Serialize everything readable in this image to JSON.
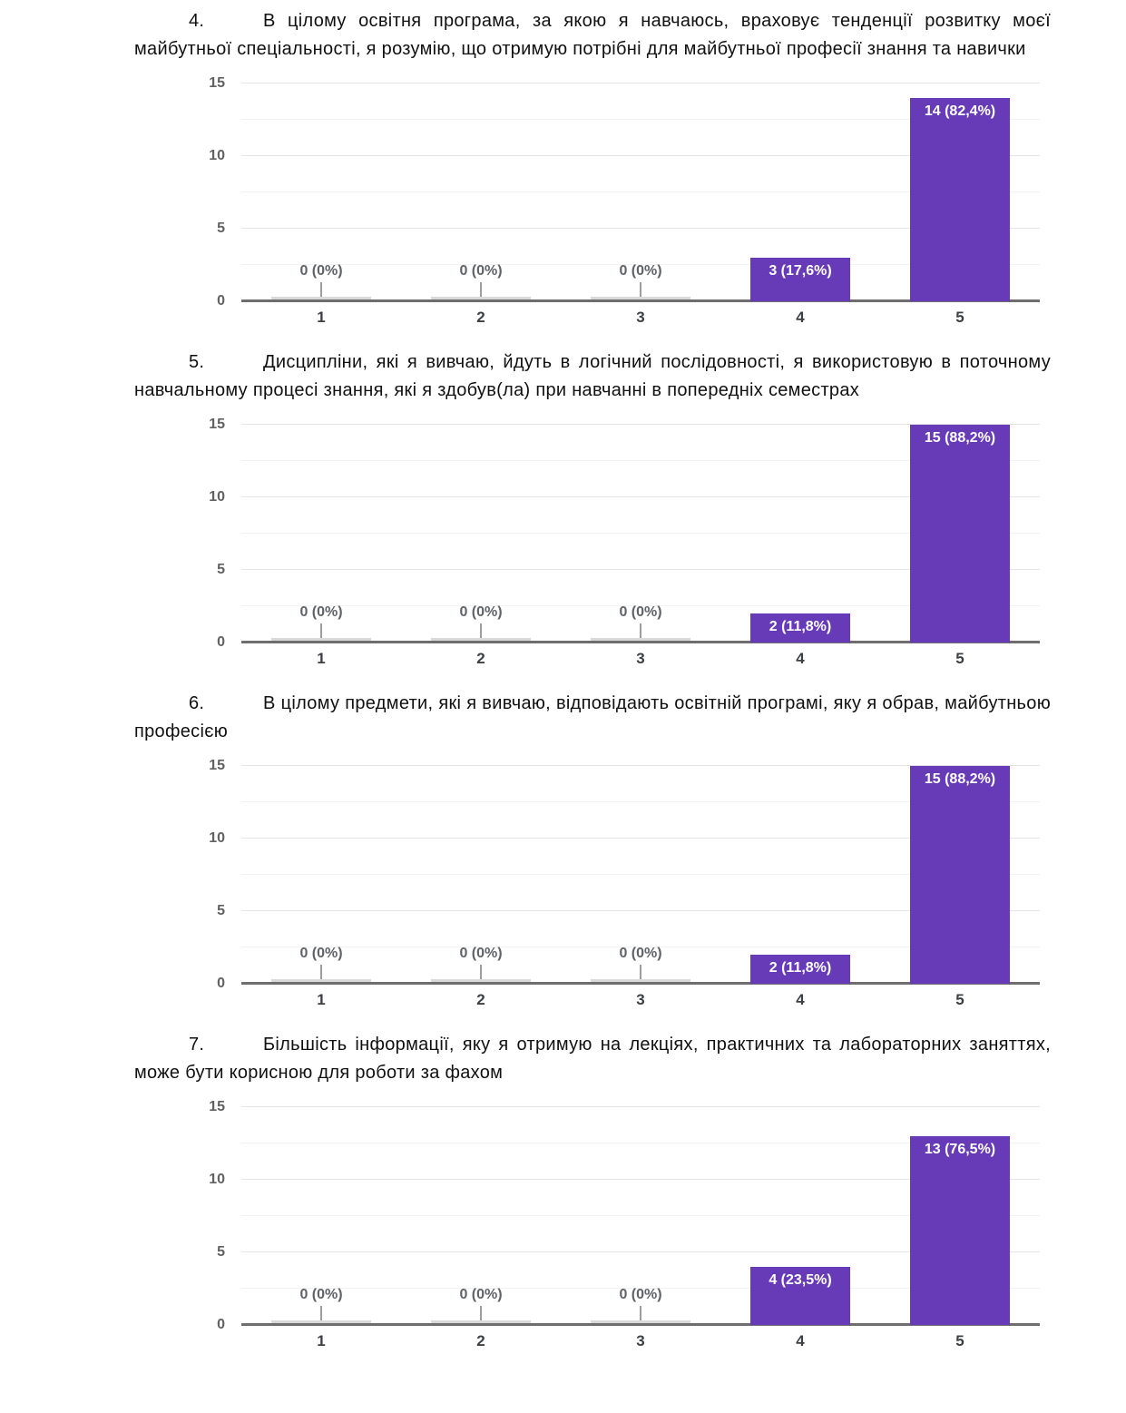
{
  "style": {
    "bar_color": "#673ab7",
    "zero_bar_color": "#d9d9d9",
    "baseline_color": "#6e6e6e",
    "grid_major_color": "#e4e4e4",
    "grid_minor_color": "#f2f2f2",
    "ytick_color": "#616161",
    "xtick_color": "#3c4043",
    "zero_label_color": "#5f6368",
    "bar_label_color": "#ffffff",
    "callout_color": "#9e9e9e",
    "text_color": "#111111"
  },
  "sections": [
    {
      "number": "4.",
      "question": "В цілому освітня програма, за якою я навчаюсь, враховує тенденції розвитку моєї майбутньої спеціальності, я розумію, що отримую потрібні для майбутньої професії знання та навички"
    },
    {
      "number": "5.",
      "question": "Дисципліни, які я вивчаю, йдуть в логічний послідовності, я використовую в поточному навчальному процесі знання, які я здобув(ла) при навчанні в попередніх семестрах"
    },
    {
      "number": "6.",
      "question": "В цілому предмети, які я вивчаю, відповідають освітній програмі, яку я обрав, майбутньою професією"
    },
    {
      "number": "7.",
      "question": "Більшість інформації, яку я отримую на лекціях, практичних та лабораторних заняттях, може бути корисною для роботи за фахом"
    }
  ],
  "chart_data": [
    {
      "type": "bar",
      "title": "",
      "categories": [
        "1",
        "2",
        "3",
        "4",
        "5"
      ],
      "values": [
        0,
        0,
        0,
        3,
        14
      ],
      "value_labels": [
        "0 (0%)",
        "0 (0%)",
        "0 (0%)",
        "3 (17,6%)",
        "14 (82,4%)"
      ],
      "ylim": [
        0,
        15
      ],
      "yticks": [
        0,
        5,
        10,
        15
      ],
      "grid_step": 2.5,
      "legend": "none",
      "grid": true
    },
    {
      "type": "bar",
      "title": "",
      "categories": [
        "1",
        "2",
        "3",
        "4",
        "5"
      ],
      "values": [
        0,
        0,
        0,
        2,
        15
      ],
      "value_labels": [
        "0 (0%)",
        "0 (0%)",
        "0 (0%)",
        "2 (11,8%)",
        "15 (88,2%)"
      ],
      "ylim": [
        0,
        15
      ],
      "yticks": [
        0,
        5,
        10,
        15
      ],
      "grid_step": 2.5,
      "legend": "none",
      "grid": true
    },
    {
      "type": "bar",
      "title": "",
      "categories": [
        "1",
        "2",
        "3",
        "4",
        "5"
      ],
      "values": [
        0,
        0,
        0,
        2,
        15
      ],
      "value_labels": [
        "0 (0%)",
        "0 (0%)",
        "0 (0%)",
        "2 (11,8%)",
        "15 (88,2%)"
      ],
      "ylim": [
        0,
        15
      ],
      "yticks": [
        0,
        5,
        10,
        15
      ],
      "grid_step": 2.5,
      "legend": "none",
      "grid": true
    },
    {
      "type": "bar",
      "title": "",
      "categories": [
        "1",
        "2",
        "3",
        "4",
        "5"
      ],
      "values": [
        0,
        0,
        0,
        4,
        13
      ],
      "value_labels": [
        "0 (0%)",
        "0 (0%)",
        "0 (0%)",
        "4 (23,5%)",
        "13 (76,5%)"
      ],
      "ylim": [
        0,
        15
      ],
      "yticks": [
        0,
        5,
        10,
        15
      ],
      "grid_step": 2.5,
      "legend": "none",
      "grid": true
    }
  ]
}
